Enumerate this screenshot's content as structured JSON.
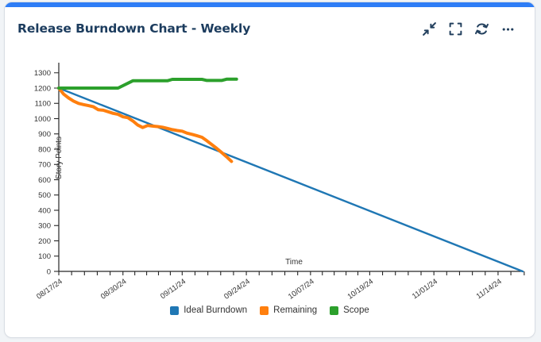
{
  "card": {
    "title": "Release Burndown Chart - Weekly",
    "accent_color": "#2e7df6",
    "title_color": "#1c3c5e",
    "toolbar_icons": [
      "collapse-icon",
      "fullscreen-icon",
      "refresh-icon",
      "more-options-icon"
    ]
  },
  "chart_data": {
    "type": "line",
    "title": "",
    "xlabel": "Time",
    "ylabel": "Story Points",
    "ylim": [
      0,
      1340
    ],
    "y_ticks": [
      0,
      100,
      200,
      300,
      400,
      500,
      600,
      700,
      800,
      900,
      1000,
      1100,
      1200,
      1300
    ],
    "x_tick_labels": [
      "08/17/24",
      "08/30/24",
      "09/11/24",
      "09/24/24",
      "10/07/24",
      "10/19/24",
      "11/01/24",
      "11/14/24"
    ],
    "x_range": [
      "08/17/24",
      "11/19/24"
    ],
    "grid": false,
    "legend_position": "bottom",
    "axis_color": "#262626",
    "tick_label_color": "#333333",
    "series": [
      {
        "name": "Ideal Burndown",
        "color": "#1f77b4",
        "width": 2.4,
        "points": [
          [
            "08/17/24",
            1200
          ],
          [
            "11/19/24",
            0
          ]
        ]
      },
      {
        "name": "Remaining",
        "color": "#ff7f0e",
        "width": 4,
        "points": [
          [
            "08/17/24",
            1200
          ],
          [
            "08/18/24",
            1160
          ],
          [
            "08/19/24",
            1135
          ],
          [
            "08/20/24",
            1115
          ],
          [
            "08/21/24",
            1100
          ],
          [
            "08/22/24",
            1092
          ],
          [
            "08/23/24",
            1085
          ],
          [
            "08/24/24",
            1078
          ],
          [
            "08/25/24",
            1058
          ],
          [
            "08/26/24",
            1055
          ],
          [
            "08/27/24",
            1045
          ],
          [
            "08/28/24",
            1035
          ],
          [
            "08/29/24",
            1028
          ],
          [
            "08/30/24",
            1012
          ],
          [
            "08/31/24",
            1006
          ],
          [
            "09/01/24",
            985
          ],
          [
            "09/02/24",
            958
          ],
          [
            "09/03/24",
            942
          ],
          [
            "09/04/24",
            955
          ],
          [
            "09/05/24",
            951
          ],
          [
            "09/06/24",
            948
          ],
          [
            "09/07/24",
            944
          ],
          [
            "09/08/24",
            936
          ],
          [
            "09/09/24",
            928
          ],
          [
            "09/10/24",
            922
          ],
          [
            "09/11/24",
            918
          ],
          [
            "09/12/24",
            905
          ],
          [
            "09/13/24",
            897
          ],
          [
            "09/14/24",
            888
          ],
          [
            "09/15/24",
            878
          ],
          [
            "09/16/24",
            855
          ],
          [
            "09/17/24",
            830
          ],
          [
            "09/18/24",
            805
          ],
          [
            "09/19/24",
            778
          ],
          [
            "09/20/24",
            750
          ],
          [
            "09/21/24",
            720
          ]
        ]
      },
      {
        "name": "Scope",
        "color": "#2ca02c",
        "width": 4,
        "points": [
          [
            "08/17/24",
            1200
          ],
          [
            "08/29/24",
            1200
          ],
          [
            "09/01/24",
            1248
          ],
          [
            "09/08/24",
            1248
          ],
          [
            "09/09/24",
            1257
          ],
          [
            "09/15/24",
            1257
          ],
          [
            "09/16/24",
            1250
          ],
          [
            "09/19/24",
            1250
          ],
          [
            "09/20/24",
            1258
          ],
          [
            "09/22/24",
            1258
          ]
        ]
      }
    ]
  }
}
